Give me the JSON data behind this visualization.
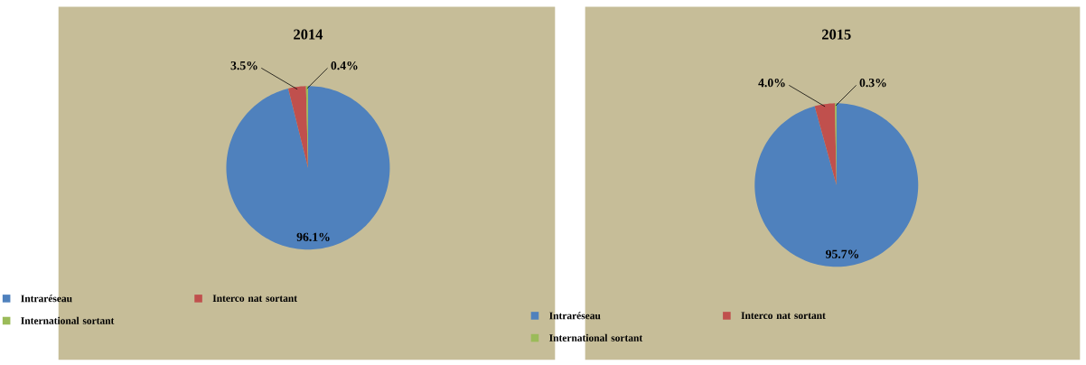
{
  "chart_data": [
    {
      "type": "pie",
      "title": "2014",
      "categories": [
        "Intraréseau",
        "Interco nat sortant",
        "International sortant"
      ],
      "values": [
        96.1,
        3.5,
        0.4
      ],
      "colors": [
        "#4f81bd",
        "#c0504d",
        "#9bbb59"
      ],
      "value_labels": [
        "96.1%",
        "3.5%",
        "0.4%"
      ],
      "legend": "bottom"
    },
    {
      "type": "pie",
      "title": "2015",
      "categories": [
        "Intraréseau",
        "Interco nat sortant",
        "International sortant"
      ],
      "values": [
        95.7,
        4.0,
        0.3
      ],
      "colors": [
        "#4f81bd",
        "#c0504d",
        "#9bbb59"
      ],
      "value_labels": [
        "95.7%",
        "4.0%",
        "0.3%"
      ],
      "legend": "bottom"
    }
  ]
}
